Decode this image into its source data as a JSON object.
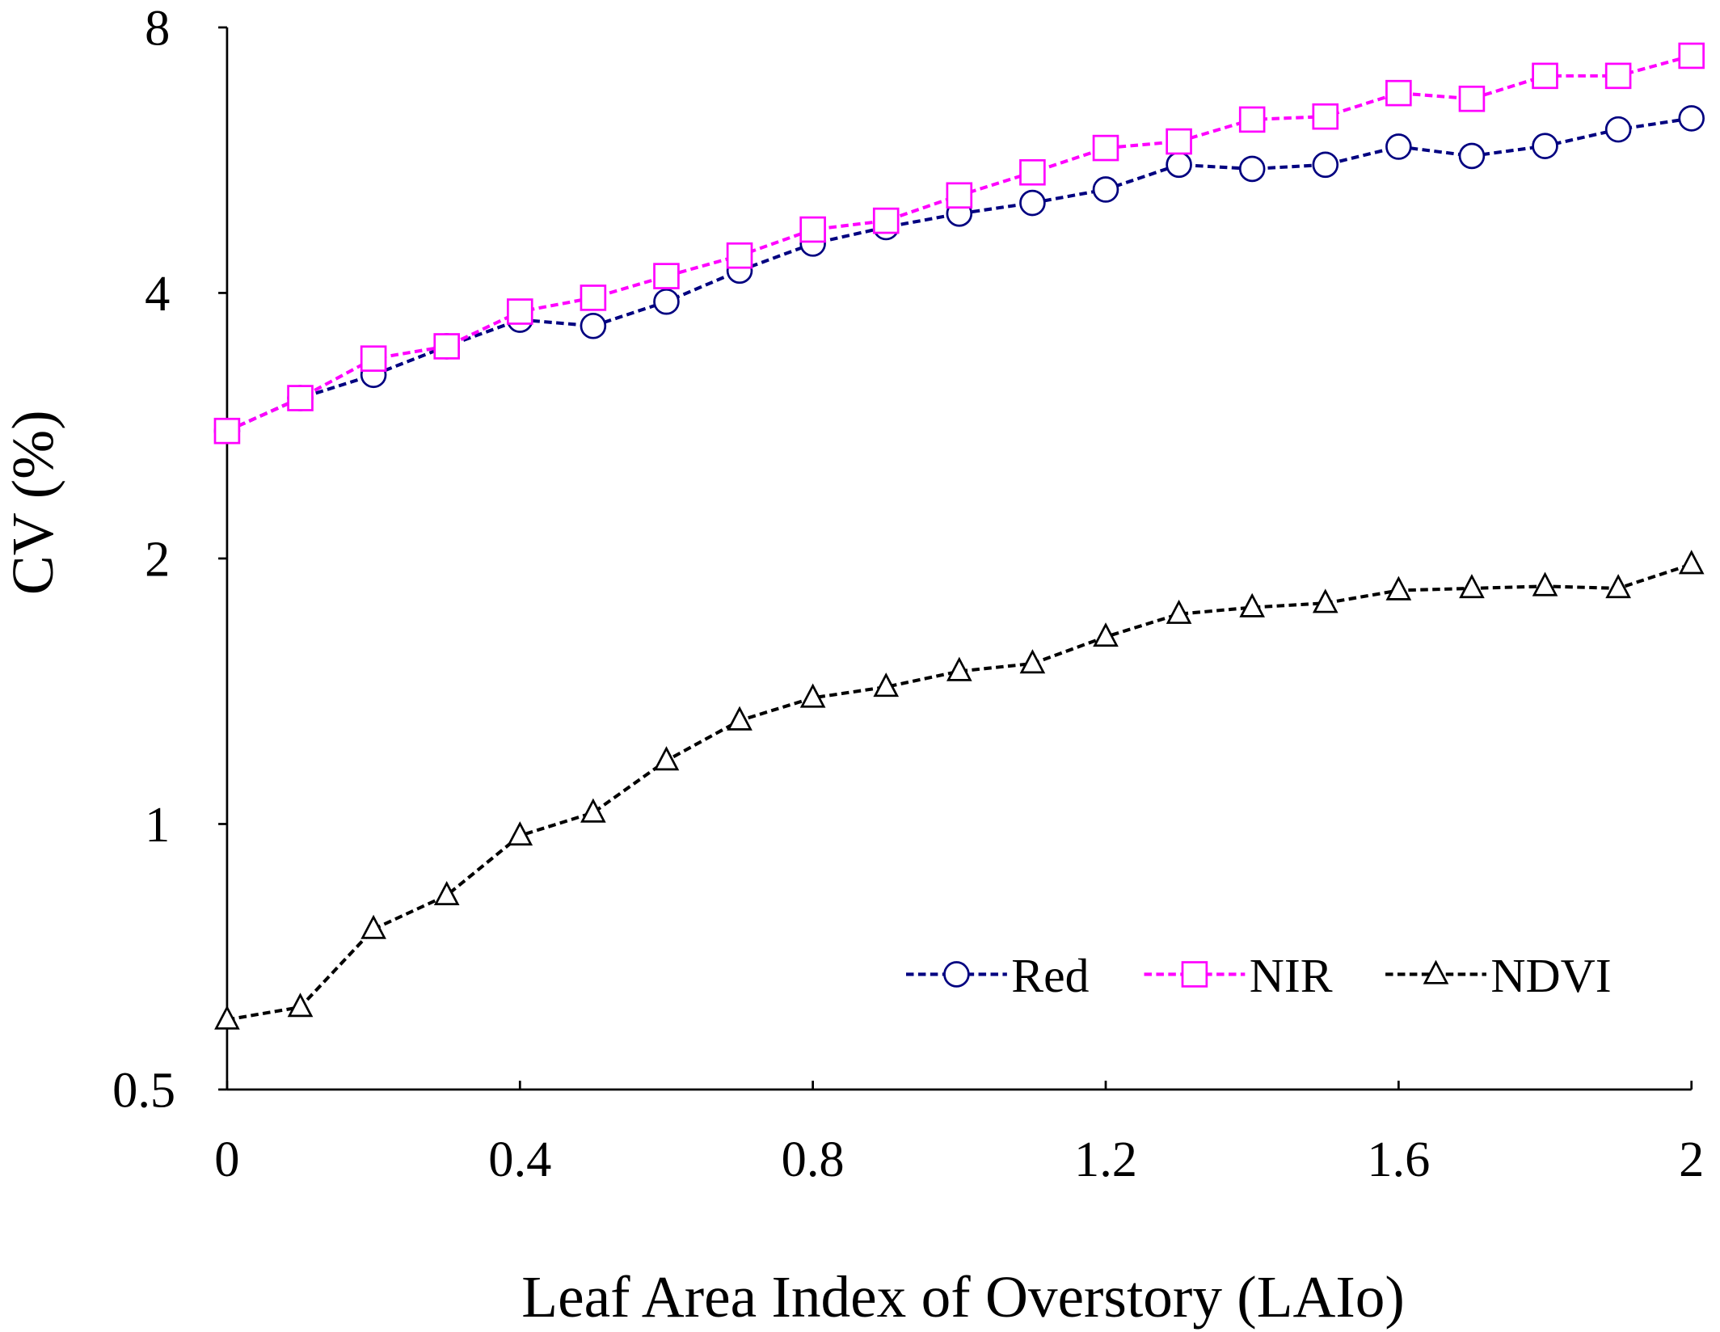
{
  "chart_data": {
    "type": "line",
    "title": "",
    "xlabel": "Leaf Area Index of Overstory (LAIo)",
    "ylabel": "CV (%)",
    "xlim": [
      0,
      2
    ],
    "ylim": [
      0.5,
      8
    ],
    "yscale": "log2",
    "xticks": [
      "0",
      "0.4",
      "0.8",
      "1.2",
      "1.6",
      "2"
    ],
    "yticks": [
      "0.5",
      "1",
      "2",
      "4",
      "8"
    ],
    "x": [
      0,
      0.1,
      0.2,
      0.3,
      0.4,
      0.5,
      0.6,
      0.7,
      0.8,
      0.9,
      1.0,
      1.1,
      1.2,
      1.3,
      1.4,
      1.5,
      1.6,
      1.7,
      1.8,
      1.9,
      2.0
    ],
    "legend_position": "bottom-right",
    "series": [
      {
        "name": "Red",
        "color": "#000080",
        "marker": "circle",
        "values": [
          2.79,
          3.04,
          3.23,
          3.48,
          3.73,
          3.67,
          3.91,
          4.24,
          4.55,
          4.75,
          4.92,
          5.06,
          5.24,
          5.59,
          5.53,
          5.59,
          5.86,
          5.72,
          5.87,
          6.13,
          6.31
        ]
      },
      {
        "name": "NIR",
        "color": "#ff00ff",
        "marker": "square",
        "values": [
          2.79,
          3.04,
          3.37,
          3.48,
          3.81,
          3.95,
          4.18,
          4.41,
          4.72,
          4.83,
          5.16,
          5.48,
          5.84,
          5.94,
          6.29,
          6.34,
          6.74,
          6.64,
          7.05,
          7.05,
          7.43
        ]
      },
      {
        "name": "NDVI",
        "color": "#000000",
        "marker": "triangle",
        "values": [
          0.6,
          0.62,
          0.76,
          0.83,
          0.97,
          1.03,
          1.18,
          1.31,
          1.39,
          1.43,
          1.49,
          1.52,
          1.63,
          1.73,
          1.76,
          1.78,
          1.84,
          1.85,
          1.86,
          1.85,
          1.97
        ]
      }
    ]
  }
}
